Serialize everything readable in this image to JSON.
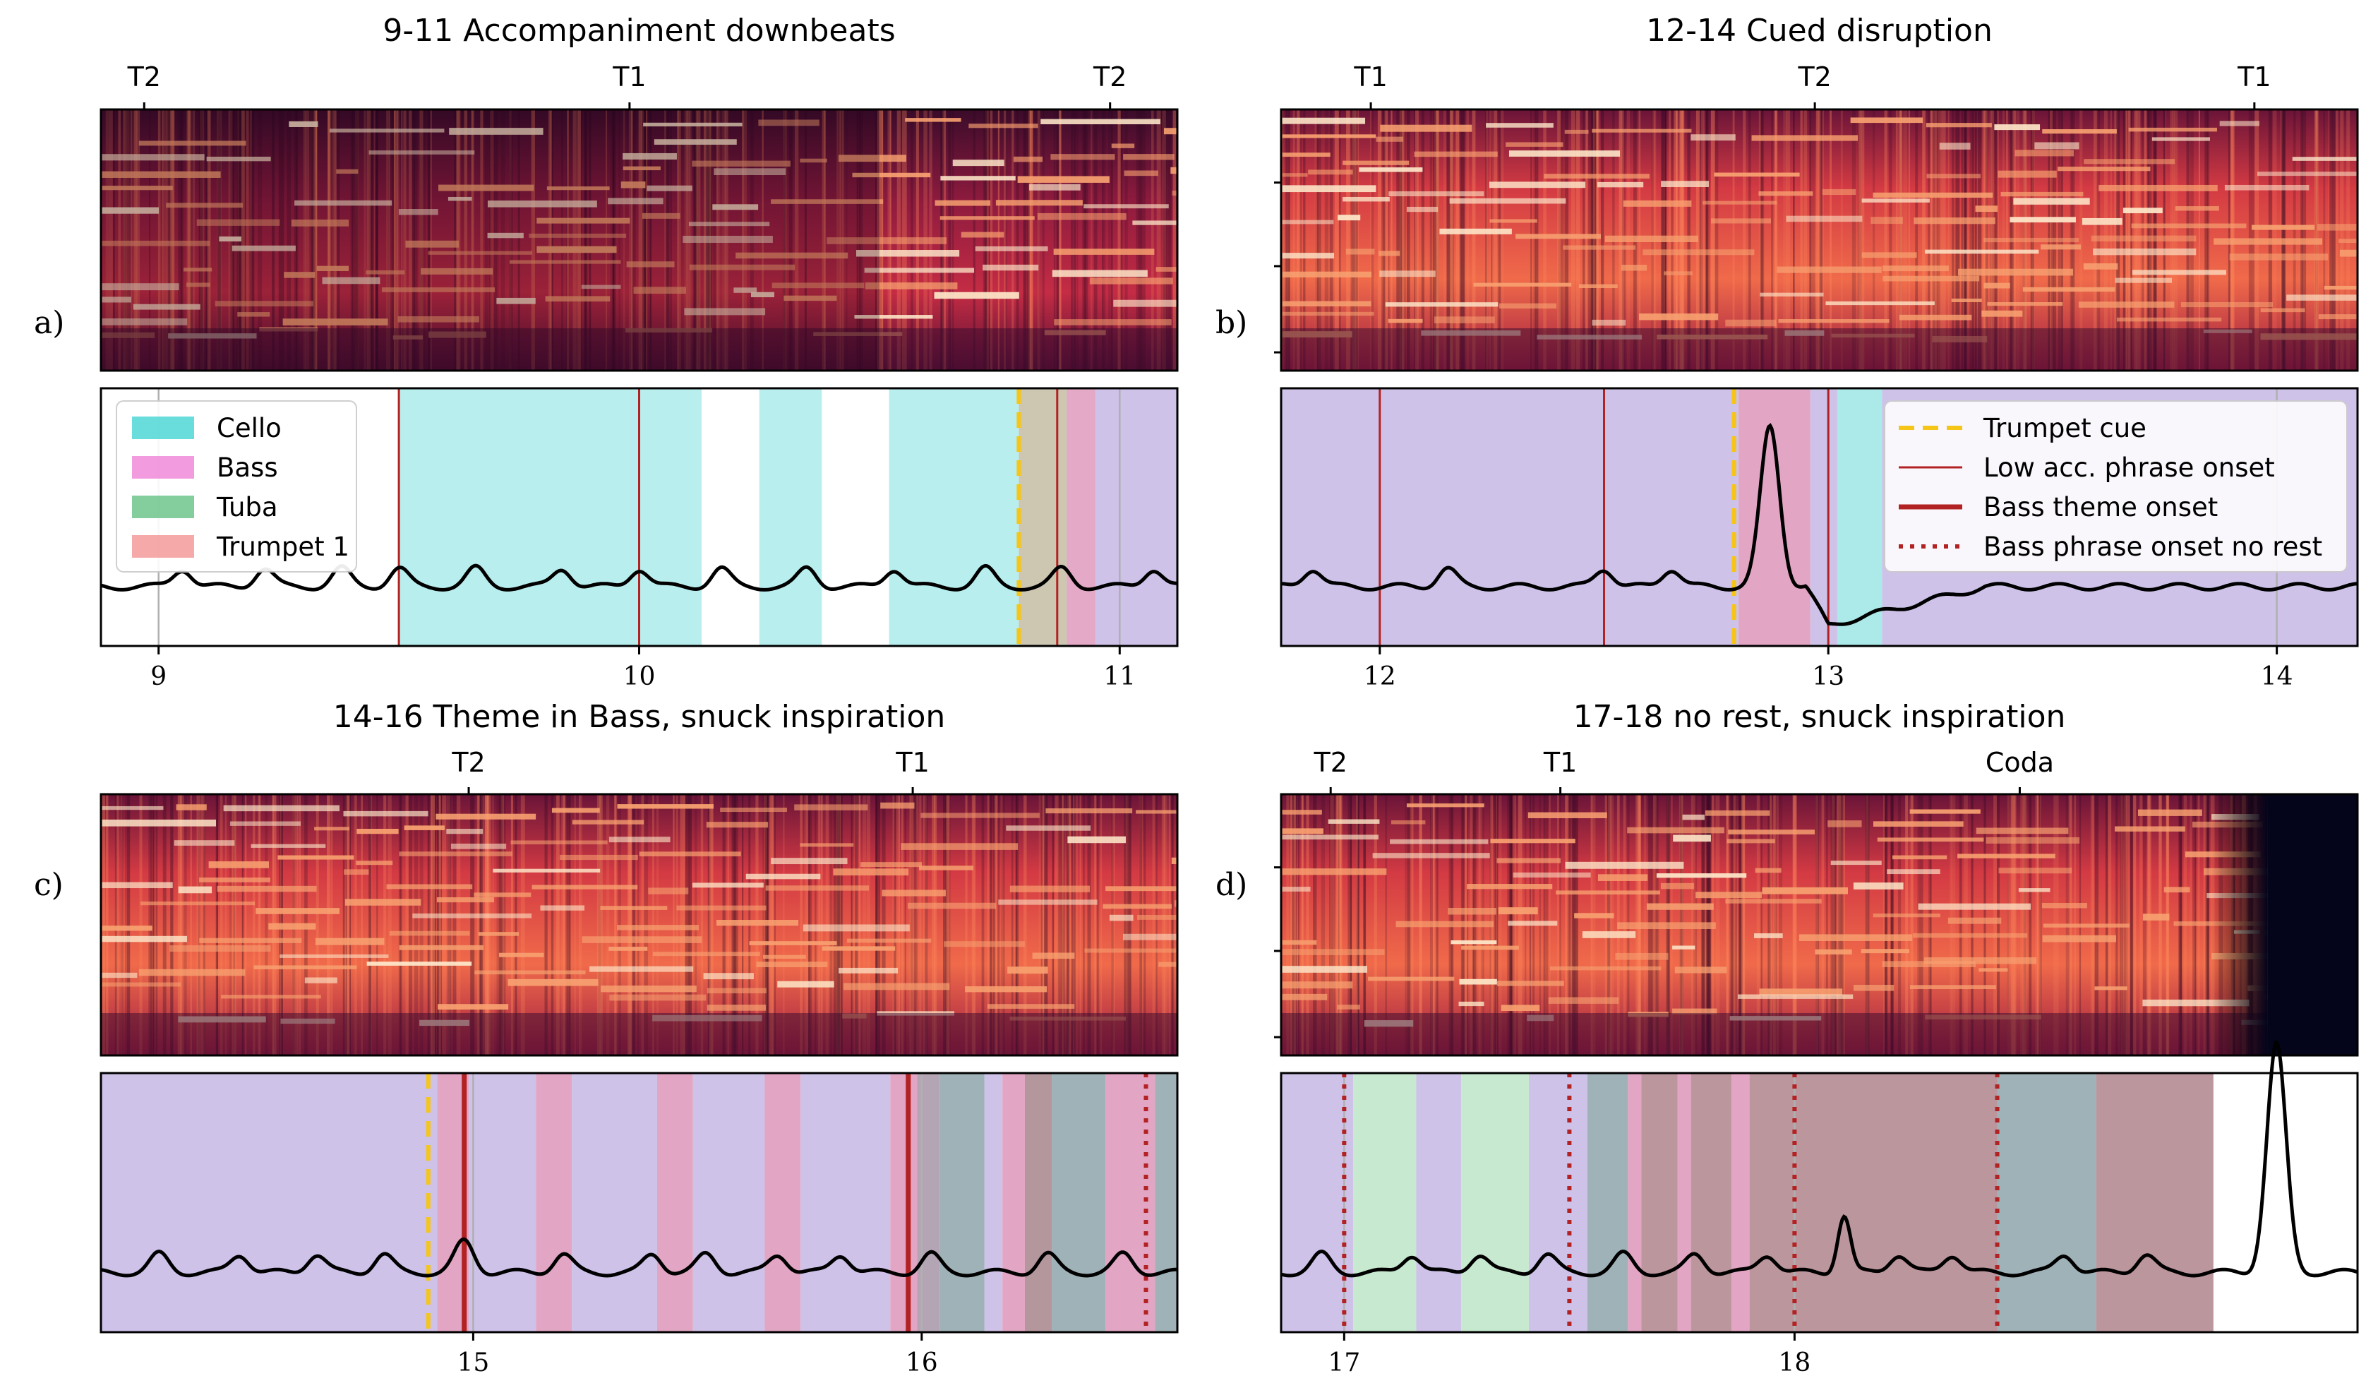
{
  "chart_data": {
    "type": "multi-panel spectrogram with instrument activity and signal traces",
    "legend_entries": {
      "instruments": [
        {
          "name": "Cello",
          "color": "#4fd6d6"
        },
        {
          "name": "Bass",
          "color": "#f08ad8"
        },
        {
          "name": "Tuba",
          "color": "#6fc48c"
        },
        {
          "name": "Trumpet 1",
          "color": "#f59a9a"
        }
      ],
      "markers": [
        {
          "name": "Trumpet cue",
          "color": "#f5c518",
          "style": "dashed"
        },
        {
          "name": "Low acc. phrase onset",
          "color": "#b22222",
          "style": "thin"
        },
        {
          "name": "Bass theme onset",
          "color": "#b22222",
          "style": "thick"
        },
        {
          "name": "Bass phrase onset no rest",
          "color": "#b22222",
          "style": "dotted"
        }
      ]
    },
    "panels": [
      {
        "id": "a",
        "label": "a)",
        "title": "9-11 Accompaniment downbeats",
        "xlim": [
          8.88,
          11.12
        ],
        "xticks": [
          9,
          10,
          11
        ],
        "top_marks": [
          {
            "x": 8.97,
            "label": "T2"
          },
          {
            "x": 9.98,
            "label": "T1"
          },
          {
            "x": 10.98,
            "label": "T2"
          }
        ],
        "spec_scale": 0.85,
        "spec_split": 10.5,
        "blocks": [
          {
            "x0": 9.5,
            "x1": 10.13,
            "color": "#7fe0e0",
            "opacity": 0.55
          },
          {
            "x0": 10.25,
            "x1": 10.38,
            "color": "#7fe0e0",
            "opacity": 0.55
          },
          {
            "x0": 10.52,
            "x1": 10.79,
            "color": "#7fe0e0",
            "opacity": 0.55
          },
          {
            "x0": 10.79,
            "x1": 10.89,
            "color": "#c8c0a8",
            "opacity": 0.9
          },
          {
            "x0": 10.89,
            "x1": 10.95,
            "color": "#e0a0c0",
            "opacity": 0.9
          },
          {
            "x0": 10.95,
            "x1": 11.12,
            "color": "#cbbfe8",
            "opacity": 0.95
          }
        ],
        "gridlines": [
          9,
          10,
          11
        ],
        "markers": [
          {
            "type": "thin",
            "x": 9.5
          },
          {
            "type": "thin",
            "x": 10.0
          },
          {
            "type": "dashed",
            "x": 10.79
          },
          {
            "type": "thin",
            "x": 10.87
          }
        ],
        "bumps": [
          9.05,
          9.22,
          9.38,
          9.5,
          9.66,
          9.84,
          10.0,
          10.17,
          10.35,
          10.53,
          10.72,
          10.88,
          11.07
        ],
        "big_peaks": [],
        "legend": "instruments"
      },
      {
        "id": "b",
        "label": "b)",
        "title": "12-14 Cued disruption",
        "xlim": [
          11.78,
          14.18
        ],
        "xticks": [
          12,
          13,
          14
        ],
        "top_marks": [
          {
            "x": 11.98,
            "label": "T1"
          },
          {
            "x": 12.97,
            "label": "T2"
          },
          {
            "x": 13.95,
            "label": "T1"
          }
        ],
        "spec_scale": 1.0,
        "spec_split": null,
        "blocks": [
          {
            "x0": 11.78,
            "x1": 12.8,
            "color": "#cbbfe8",
            "opacity": 0.95
          },
          {
            "x0": 12.8,
            "x1": 12.96,
            "color": "#e0a0c0",
            "opacity": 0.95
          },
          {
            "x0": 12.96,
            "x1": 13.02,
            "color": "#cbbfe8",
            "opacity": 0.95
          },
          {
            "x0": 13.02,
            "x1": 13.12,
            "color": "#a8e8e8",
            "opacity": 0.95
          },
          {
            "x0": 13.12,
            "x1": 14.18,
            "color": "#cbbfe8",
            "opacity": 0.95
          }
        ],
        "gridlines": [
          12,
          13,
          14
        ],
        "markers": [
          {
            "type": "thin",
            "x": 12.0
          },
          {
            "type": "thin",
            "x": 12.5
          },
          {
            "type": "dashed",
            "x": 12.79
          },
          {
            "type": "thin",
            "x": 13.0
          }
        ],
        "bumps": [
          11.85,
          12.15,
          12.5,
          12.65
        ],
        "big_peaks": [
          {
            "x": 12.87,
            "h": 0.62,
            "w": 0.03
          }
        ],
        "dip": {
          "x": 13.0,
          "depth": 0.15,
          "recover": 13.35
        },
        "legend": "markers"
      },
      {
        "id": "c",
        "label": "c)",
        "title": "14-16 Theme in Bass, snuck inspiration",
        "xlim": [
          14.17,
          16.57
        ],
        "xticks": [
          15,
          16
        ],
        "top_marks": [
          {
            "x": 14.99,
            "label": "T2"
          },
          {
            "x": 15.98,
            "label": "T1"
          }
        ],
        "spec_scale": 0.95,
        "spec_split": null,
        "blocks": [
          {
            "x0": 14.17,
            "x1": 14.92,
            "color": "#cbbfe8",
            "opacity": 0.95
          },
          {
            "x0": 14.92,
            "x1": 14.99,
            "color": "#e0a0c0",
            "opacity": 0.95
          },
          {
            "x0": 14.99,
            "x1": 15.14,
            "color": "#cbbfe8",
            "opacity": 0.95
          },
          {
            "x0": 15.14,
            "x1": 15.22,
            "color": "#e0a0c0",
            "opacity": 0.95
          },
          {
            "x0": 15.22,
            "x1": 15.41,
            "color": "#cbbfe8",
            "opacity": 0.95
          },
          {
            "x0": 15.41,
            "x1": 15.49,
            "color": "#e0a0c0",
            "opacity": 0.95
          },
          {
            "x0": 15.49,
            "x1": 15.65,
            "color": "#cbbfe8",
            "opacity": 0.95
          },
          {
            "x0": 15.65,
            "x1": 15.73,
            "color": "#e0a0c0",
            "opacity": 0.95
          },
          {
            "x0": 15.73,
            "x1": 15.93,
            "color": "#cbbfe8",
            "opacity": 0.95
          },
          {
            "x0": 15.93,
            "x1": 15.99,
            "color": "#e0a0c0",
            "opacity": 0.95
          },
          {
            "x0": 15.99,
            "x1": 16.04,
            "color": "#b0a0b0",
            "opacity": 0.95
          },
          {
            "x0": 16.04,
            "x1": 16.14,
            "color": "#9aaeb4",
            "opacity": 0.95
          },
          {
            "x0": 16.14,
            "x1": 16.18,
            "color": "#cbbfe8",
            "opacity": 0.95
          },
          {
            "x0": 16.18,
            "x1": 16.23,
            "color": "#e0a0c0",
            "opacity": 0.95
          },
          {
            "x0": 16.23,
            "x1": 16.29,
            "color": "#b09098",
            "opacity": 0.95
          },
          {
            "x0": 16.29,
            "x1": 16.41,
            "color": "#9aaeb4",
            "opacity": 0.95
          },
          {
            "x0": 16.41,
            "x1": 16.52,
            "color": "#e0a0c0",
            "opacity": 0.95
          },
          {
            "x0": 16.52,
            "x1": 16.57,
            "color": "#9aaeb4",
            "opacity": 0.95
          }
        ],
        "gridlines": [
          15,
          16
        ],
        "markers": [
          {
            "type": "dashed",
            "x": 14.9
          },
          {
            "type": "thick",
            "x": 14.98
          },
          {
            "type": "thick",
            "x": 15.97
          },
          {
            "type": "dotted",
            "x": 16.5
          }
        ],
        "bumps": [
          14.3,
          14.48,
          14.65,
          14.8,
          15.2,
          15.4,
          15.52,
          15.68,
          15.82,
          16.02,
          16.28,
          16.45
        ],
        "big_peaks": [
          {
            "x": 14.98,
            "h": 0.12,
            "w": 0.03
          }
        ],
        "legend": null
      },
      {
        "id": "d",
        "label": "d)",
        "title": "17-18 no rest, snuck inspiration",
        "xlim": [
          16.86,
          19.25
        ],
        "xticks": [
          17,
          18
        ],
        "top_marks": [
          {
            "x": 16.97,
            "label": "T2"
          },
          {
            "x": 17.48,
            "label": "T1"
          },
          {
            "x": 18.5,
            "label": "Coda"
          }
        ],
        "spec_scale": 1.0,
        "spec_split": null,
        "spec_end": 19.05,
        "blocks": [
          {
            "x0": 16.86,
            "x1": 17.02,
            "color": "#cbbfe8",
            "opacity": 0.95
          },
          {
            "x0": 17.02,
            "x1": 17.16,
            "color": "#c4e8cc",
            "opacity": 0.95
          },
          {
            "x0": 17.16,
            "x1": 17.26,
            "color": "#cbbfe8",
            "opacity": 0.95
          },
          {
            "x0": 17.26,
            "x1": 17.41,
            "color": "#c4e8cc",
            "opacity": 0.95
          },
          {
            "x0": 17.41,
            "x1": 17.54,
            "color": "#cbbfe8",
            "opacity": 0.95
          },
          {
            "x0": 17.54,
            "x1": 17.63,
            "color": "#9aaeb4",
            "opacity": 0.95
          },
          {
            "x0": 17.63,
            "x1": 17.66,
            "color": "#e0a0c0",
            "opacity": 0.95
          },
          {
            "x0": 17.66,
            "x1": 17.74,
            "color": "#b89098",
            "opacity": 0.95
          },
          {
            "x0": 17.74,
            "x1": 17.77,
            "color": "#e0a0c0",
            "opacity": 0.95
          },
          {
            "x0": 17.77,
            "x1": 17.86,
            "color": "#b89098",
            "opacity": 0.95
          },
          {
            "x0": 17.86,
            "x1": 17.9,
            "color": "#e0a0c0",
            "opacity": 0.95
          },
          {
            "x0": 17.9,
            "x1": 18.45,
            "color": "#b89098",
            "opacity": 0.95
          },
          {
            "x0": 18.45,
            "x1": 18.67,
            "color": "#9aaeb4",
            "opacity": 0.95
          },
          {
            "x0": 18.67,
            "x1": 18.93,
            "color": "#b89098",
            "opacity": 0.95
          }
        ],
        "gridlines": [
          17,
          18
        ],
        "markers": [
          {
            "type": "dotted",
            "x": 17.0
          },
          {
            "type": "dotted",
            "x": 17.5
          },
          {
            "type": "dotted",
            "x": 18.0
          },
          {
            "type": "dotted",
            "x": 18.45
          }
        ],
        "bumps": [
          16.95,
          17.15,
          17.3,
          17.45,
          17.62,
          17.78,
          17.94,
          18.23,
          18.35,
          18.6,
          18.78
        ],
        "big_peaks": [
          {
            "x": 18.11,
            "h": 0.22,
            "w": 0.02
          },
          {
            "x": 19.07,
            "h": 0.88,
            "w": 0.03
          }
        ],
        "legend": null
      }
    ]
  }
}
